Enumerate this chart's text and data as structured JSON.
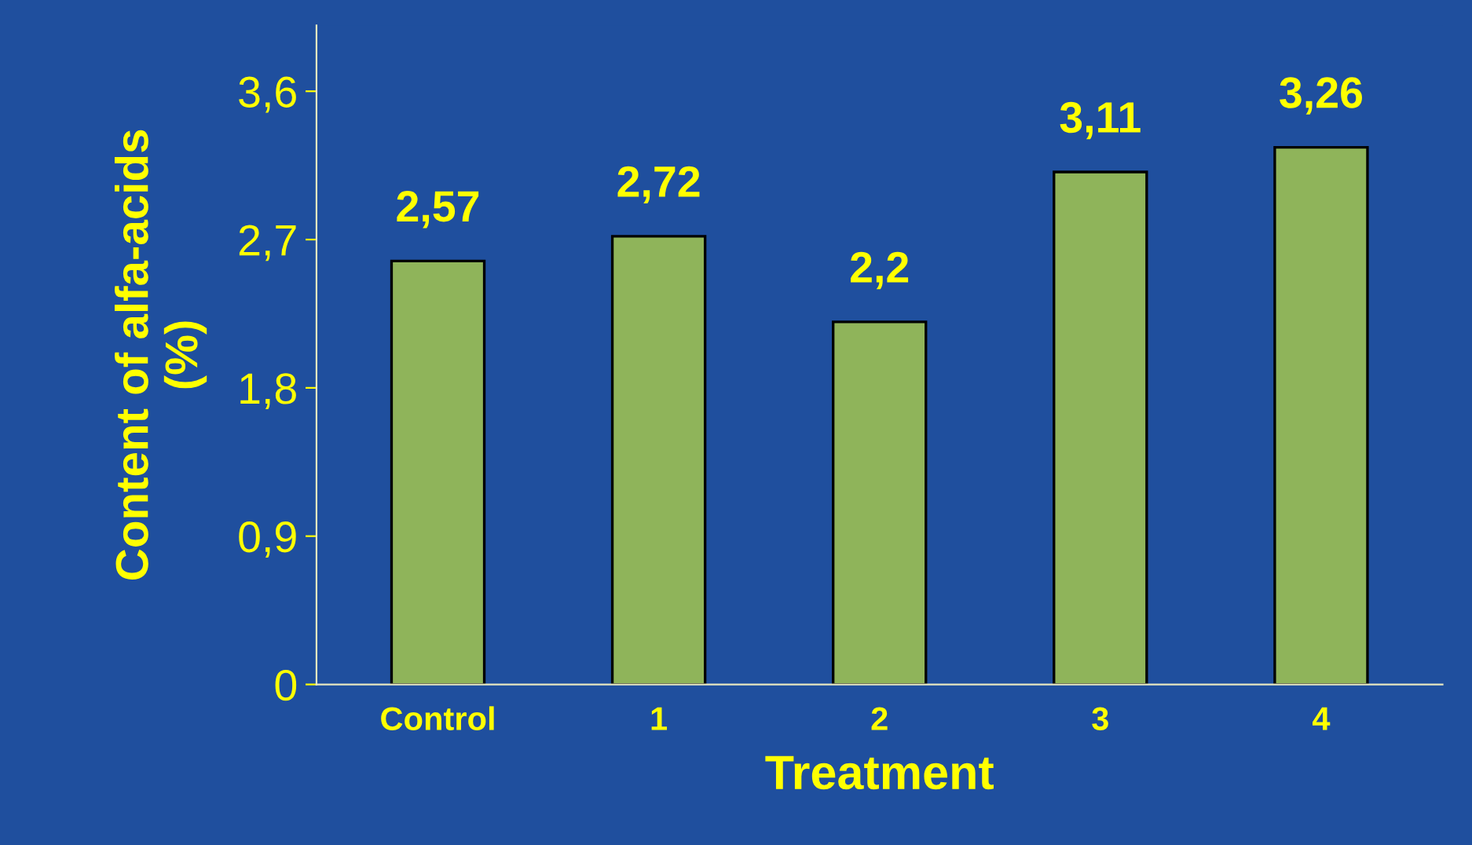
{
  "chart_data": {
    "type": "bar",
    "xlabel": "Treatment",
    "ylabel": "Content of alfa-acids\n(%)",
    "categories": [
      "Control",
      "1",
      "2",
      "3",
      "4"
    ],
    "values": [
      2.57,
      2.72,
      2.2,
      3.11,
      3.26
    ],
    "value_labels": [
      "2,57",
      "2,72",
      "2,2",
      "3,11",
      "3,26"
    ],
    "color": "#8fb45a",
    "ylim": [
      0,
      4
    ],
    "yticks": [
      {
        "value": 0,
        "label": "0"
      },
      {
        "value": 0.9,
        "label": "0,9"
      },
      {
        "value": 1.8,
        "label": "1,8"
      },
      {
        "value": 2.7,
        "label": "2,7"
      },
      {
        "value": 3.6,
        "label": "3,6"
      }
    ],
    "grid": false
  }
}
